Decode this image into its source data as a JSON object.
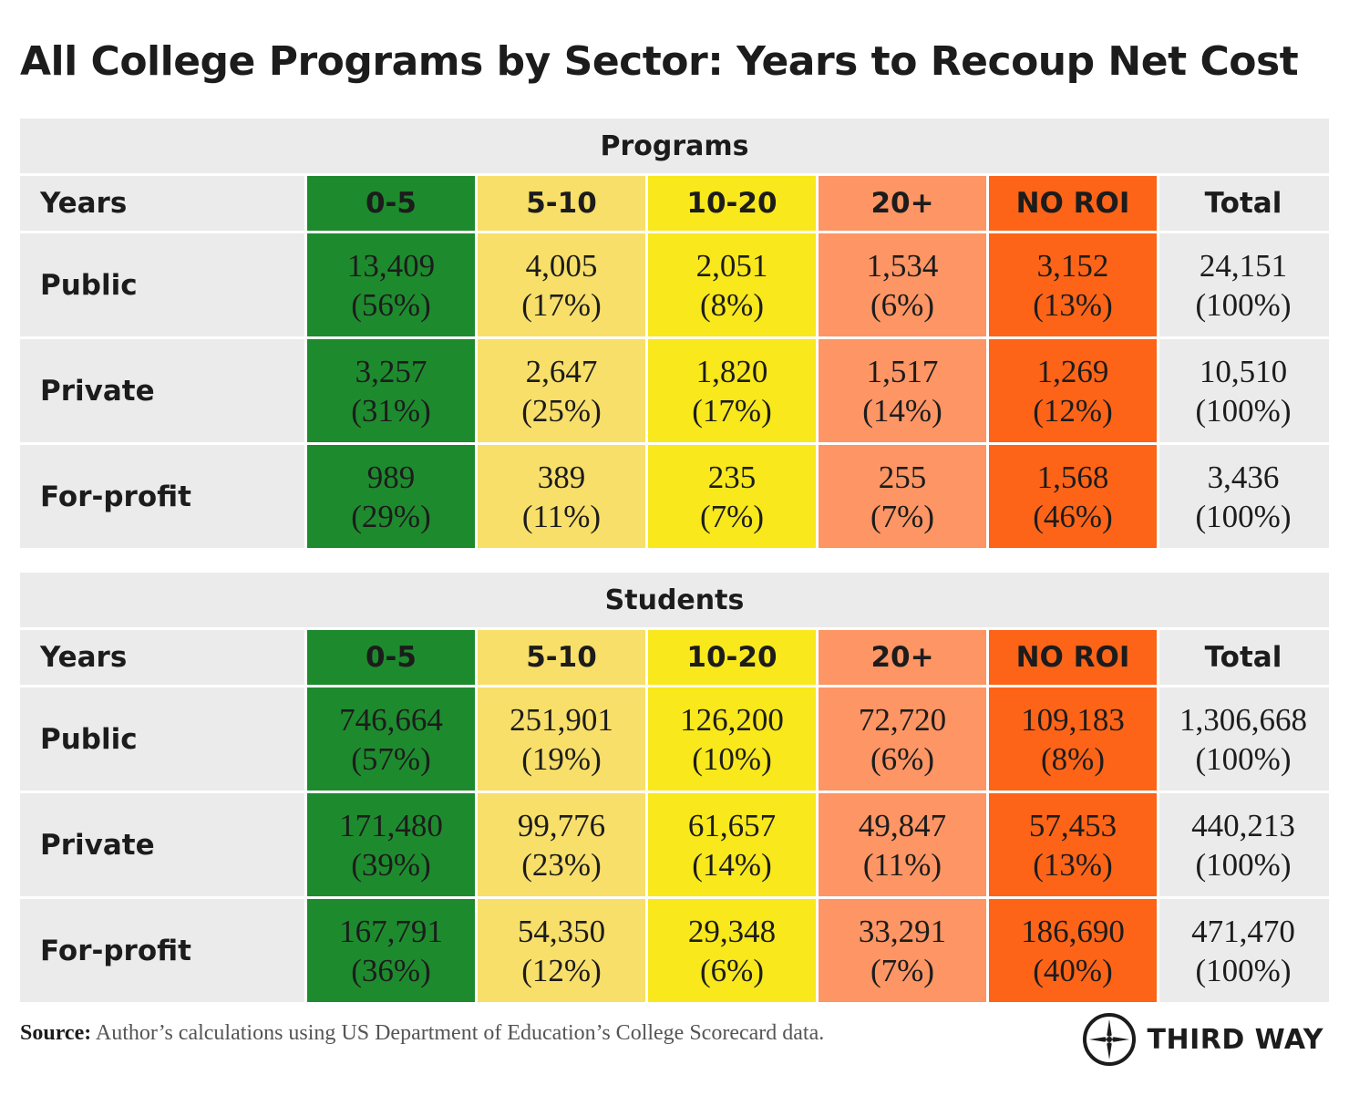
{
  "title": "All College Programs by Sector: Years to Recoup Net Cost",
  "colors": {
    "header_bg": "#ebebeb",
    "bucket_0_5": "#1e8a2e",
    "bucket_5_10": "#f7df6a",
    "bucket_10_20": "#f8e81c",
    "bucket_20_plus": "#fd9564",
    "bucket_no_roi": "#fd6418"
  },
  "chart_data": [
    {
      "type": "table",
      "title": "Programs",
      "row_header": "Years",
      "columns": [
        "0-5",
        "5-10",
        "10-20",
        "20+",
        "NO ROI",
        "Total"
      ],
      "rows": [
        {
          "label": "Public",
          "values": [
            "13,409",
            "4,005",
            "2,051",
            "1,534",
            "3,152",
            "24,151"
          ],
          "percents": [
            "(56%)",
            "(17%)",
            "(8%)",
            "(6%)",
            "(13%)",
            "(100%)"
          ]
        },
        {
          "label": "Private",
          "values": [
            "3,257",
            "2,647",
            "1,820",
            "1,517",
            "1,269",
            "10,510"
          ],
          "percents": [
            "(31%)",
            "(25%)",
            "(17%)",
            "(14%)",
            "(12%)",
            "(100%)"
          ]
        },
        {
          "label": "For-profit",
          "values": [
            "989",
            "389",
            "235",
            "255",
            "1,568",
            "3,436"
          ],
          "percents": [
            "(29%)",
            "(11%)",
            "(7%)",
            "(7%)",
            "(46%)",
            "(100%)"
          ]
        }
      ]
    },
    {
      "type": "table",
      "title": "Students",
      "row_header": "Years",
      "columns": [
        "0-5",
        "5-10",
        "10-20",
        "20+",
        "NO ROI",
        "Total"
      ],
      "rows": [
        {
          "label": "Public",
          "values": [
            "746,664",
            "251,901",
            "126,200",
            "72,720",
            "109,183",
            "1,306,668"
          ],
          "percents": [
            "(57%)",
            "(19%)",
            "(10%)",
            "(6%)",
            "(8%)",
            "(100%)"
          ]
        },
        {
          "label": "Private",
          "values": [
            "171,480",
            "99,776",
            "61,657",
            "49,847",
            "57,453",
            "440,213"
          ],
          "percents": [
            "(39%)",
            "(23%)",
            "(14%)",
            "(11%)",
            "(13%)",
            "(100%)"
          ]
        },
        {
          "label": "For-profit",
          "values": [
            "167,791",
            "54,350",
            "29,348",
            "33,291",
            "186,690",
            "471,470"
          ],
          "percents": [
            "(36%)",
            "(12%)",
            "(6%)",
            "(7%)",
            "(40%)",
            "(100%)"
          ]
        }
      ]
    }
  ],
  "footer": {
    "source_label": "Source:",
    "source_text": " Author’s calculations using US Department of Education’s College Scorecard data."
  },
  "logo": {
    "text": "THIRD WAY",
    "icon": "compass-star-icon"
  }
}
